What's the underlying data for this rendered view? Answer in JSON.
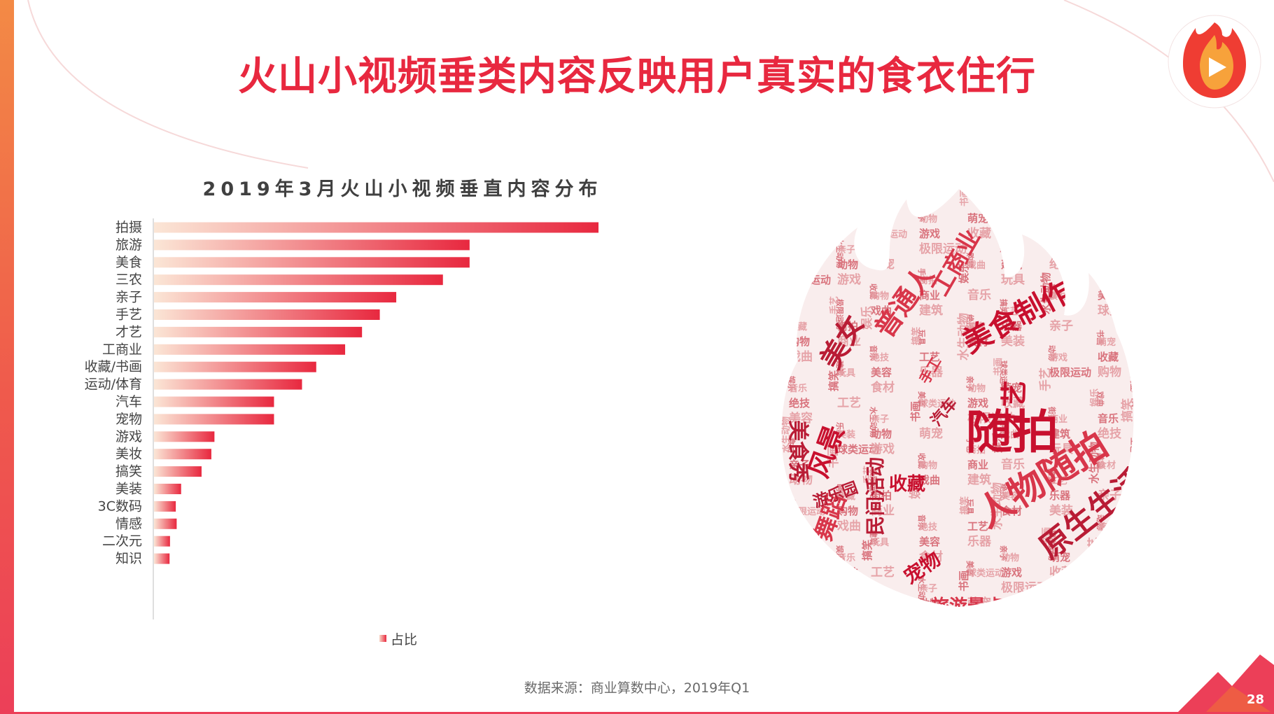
{
  "title": "火山小视频垂类内容反映用户真实的食衣住行",
  "colors": {
    "accent": "#e8283f",
    "bar_start": "#fbe3d2",
    "bar_end": "#e8283f"
  },
  "chart_data": {
    "type": "bar",
    "orientation": "horizontal",
    "title": "2019年3月火山小视频垂直内容分布",
    "categories": [
      "拍摄",
      "旅游",
      "美食",
      "三农",
      "亲子",
      "手艺",
      "才艺",
      "工商业",
      "收藏/书画",
      "运动/体育",
      "汽车",
      "宠物",
      "游戏",
      "美妆",
      "搞笑",
      "美装",
      "3C数码",
      "情感",
      "二次元",
      "知识"
    ],
    "series": [
      {
        "name": "占比",
        "values": [
          100,
          71,
          71,
          65,
          54.5,
          50.8,
          46.8,
          43,
          36.5,
          33.3,
          27,
          27,
          13.6,
          12.9,
          10.7,
          6.1,
          4.9,
          5.1,
          3.6,
          3.5
        ]
      }
    ],
    "grid": false,
    "legend": "bottom"
  },
  "source": "数据来源：商业算数中心，2019年Q1",
  "page_number": "28",
  "wordcloud": {
    "big": [
      "随拍",
      "人物随拍",
      "原生生活",
      "美食制作",
      "普通人",
      "美女",
      "才艺",
      "工商业",
      "美食秀",
      "风景",
      "舞蹈",
      "民间活动",
      "宠物",
      "旅游景点",
      "游乐园",
      "收藏",
      "手工",
      "汽车"
    ],
    "small": [
      "玩具",
      "美容",
      "乐器",
      "亲子",
      "书画",
      "极限运动",
      "购物",
      "商业",
      "音乐",
      "搞笑",
      "食材",
      "美装",
      "动物",
      "萌宠",
      "手艺",
      "戏曲",
      "建筑",
      "绝技",
      "工艺",
      "水生动物",
      "球类运动",
      "游戏",
      "收藏",
      "街拍",
      "娱乐"
    ]
  }
}
